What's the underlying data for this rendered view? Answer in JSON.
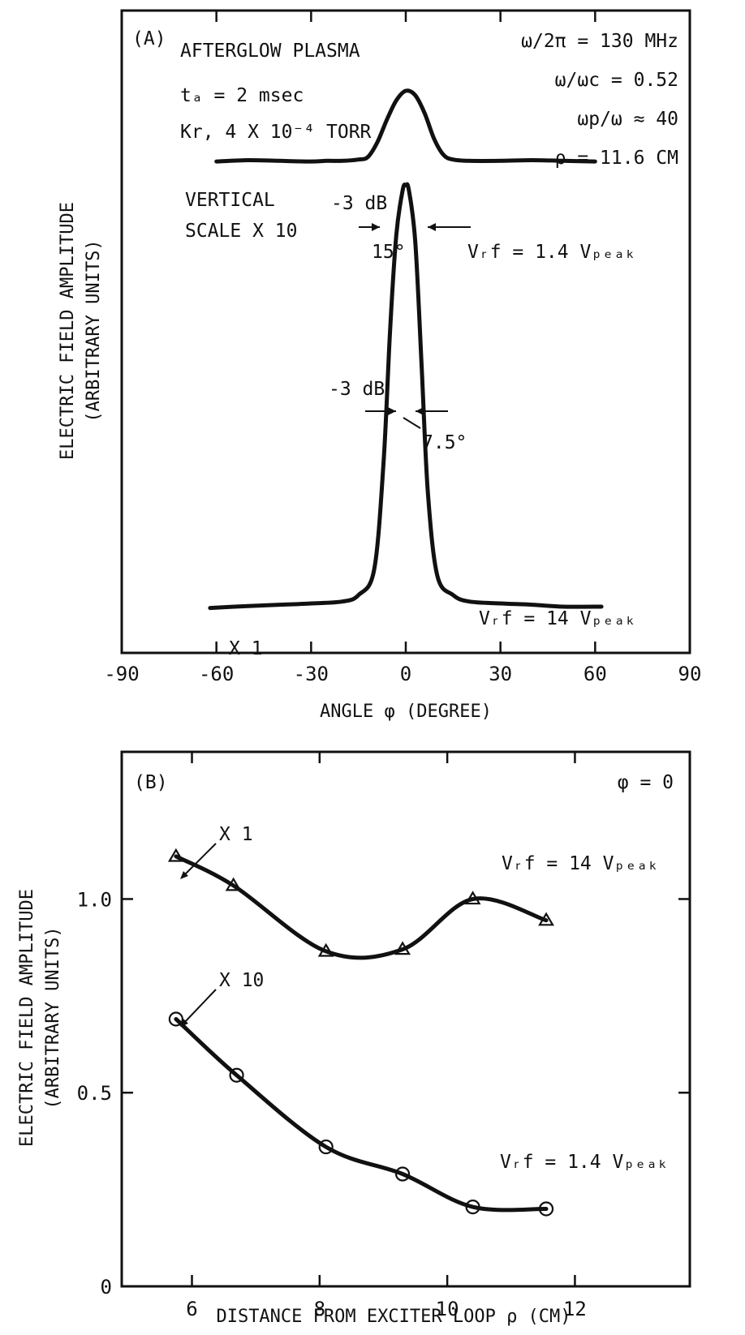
{
  "chart_data": [
    {
      "type": "line",
      "panel_label": "(A)",
      "title": "",
      "xlabel": "ANGLE φ (DEGREE)",
      "ylabel_line1": "ELECTRIC FIELD AMPLITUDE",
      "ylabel_line2": "(ARBITRARY UNITS)",
      "xlim": [
        -90,
        90
      ],
      "xticks": [
        -90,
        -60,
        -30,
        0,
        30,
        60,
        90
      ],
      "xtick_labels": [
        "-90",
        "-60",
        "-30",
        "0",
        "30",
        "60",
        "90"
      ],
      "grid": false,
      "annotations": {
        "plasma": "AFTERGLOW PLASMA",
        "ta": "tₐ = 2 msec",
        "gas": "Kr, 4 X 10⁻⁴ TORR",
        "freq": "ω/2π = 130 MHz",
        "wwc": "ω/ωc = 0.52",
        "wpw": "ωp/ω ≈ 40",
        "rho": "ρ = 11.6 CM",
        "vscale1": "VERTICAL",
        "vscale2": "SCALE X 10",
        "db_upper": "-3 dB",
        "width_upper": "15°",
        "db_lower": "-3 dB",
        "width_lower": "7.5°",
        "x1": "X 1"
      },
      "series": [
        {
          "name": "Vᵣf = 1.4 Vₚₑₐₖ",
          "x": [
            -60,
            -50,
            -40,
            -30,
            -25,
            -20,
            -15,
            -12,
            -9,
            -6,
            -3,
            0,
            3,
            6,
            9,
            12,
            15,
            20,
            30,
            40,
            50,
            60
          ],
          "y": [
            0.765,
            0.767,
            0.766,
            0.765,
            0.766,
            0.766,
            0.768,
            0.772,
            0.795,
            0.83,
            0.86,
            0.875,
            0.868,
            0.84,
            0.8,
            0.775,
            0.768,
            0.766,
            0.766,
            0.767,
            0.766,
            0.765
          ]
        },
        {
          "name": "Vᵣf = 14 Vₚₑₐₖ",
          "x": [
            -62,
            -50,
            -40,
            -30,
            -20,
            -15,
            -10,
            -7,
            -5,
            -3,
            -1,
            0,
            1,
            3,
            5,
            7,
            10,
            15,
            20,
            30,
            40,
            50,
            62
          ],
          "y": [
            0.07,
            0.073,
            0.075,
            0.077,
            0.08,
            0.09,
            0.13,
            0.3,
            0.5,
            0.65,
            0.72,
            0.728,
            0.72,
            0.64,
            0.45,
            0.25,
            0.12,
            0.09,
            0.08,
            0.077,
            0.075,
            0.072,
            0.072
          ]
        }
      ]
    },
    {
      "type": "line",
      "panel_label": "(B)",
      "title": "",
      "xlabel": "DISTANCE FROM EXCITER LOOP ρ (CM)",
      "ylabel_line1": "ELECTRIC FIELD AMPLITUDE",
      "ylabel_line2": "(ARBITRARY UNITS)",
      "xlim": [
        4.9,
        13.8
      ],
      "ylim": [
        0,
        1.38
      ],
      "xticks": [
        6,
        8,
        10,
        12
      ],
      "xtick_labels": [
        "6",
        "8",
        "10",
        "12"
      ],
      "yticks": [
        0,
        0.5,
        1.0
      ],
      "ytick_labels": [
        "0",
        "0.5",
        "1.0"
      ],
      "grid": false,
      "annotations": {
        "phi": "φ = 0",
        "x1": "X 1",
        "x10": "X 10"
      },
      "series": [
        {
          "name": "Vᵣf = 14 Vₚₑₐₖ",
          "marker": "triangle",
          "x": [
            5.75,
            6.65,
            8.1,
            9.3,
            10.4,
            11.55
          ],
          "y": [
            1.11,
            1.035,
            0.865,
            0.87,
            1.0,
            0.945
          ]
        },
        {
          "name": "Vᵣf = 1.4 Vₚₑₐₖ",
          "marker": "circle",
          "x": [
            5.75,
            6.7,
            8.1,
            9.3,
            10.4,
            11.55
          ],
          "y": [
            0.69,
            0.545,
            0.36,
            0.29,
            0.205,
            0.2
          ]
        }
      ]
    }
  ]
}
